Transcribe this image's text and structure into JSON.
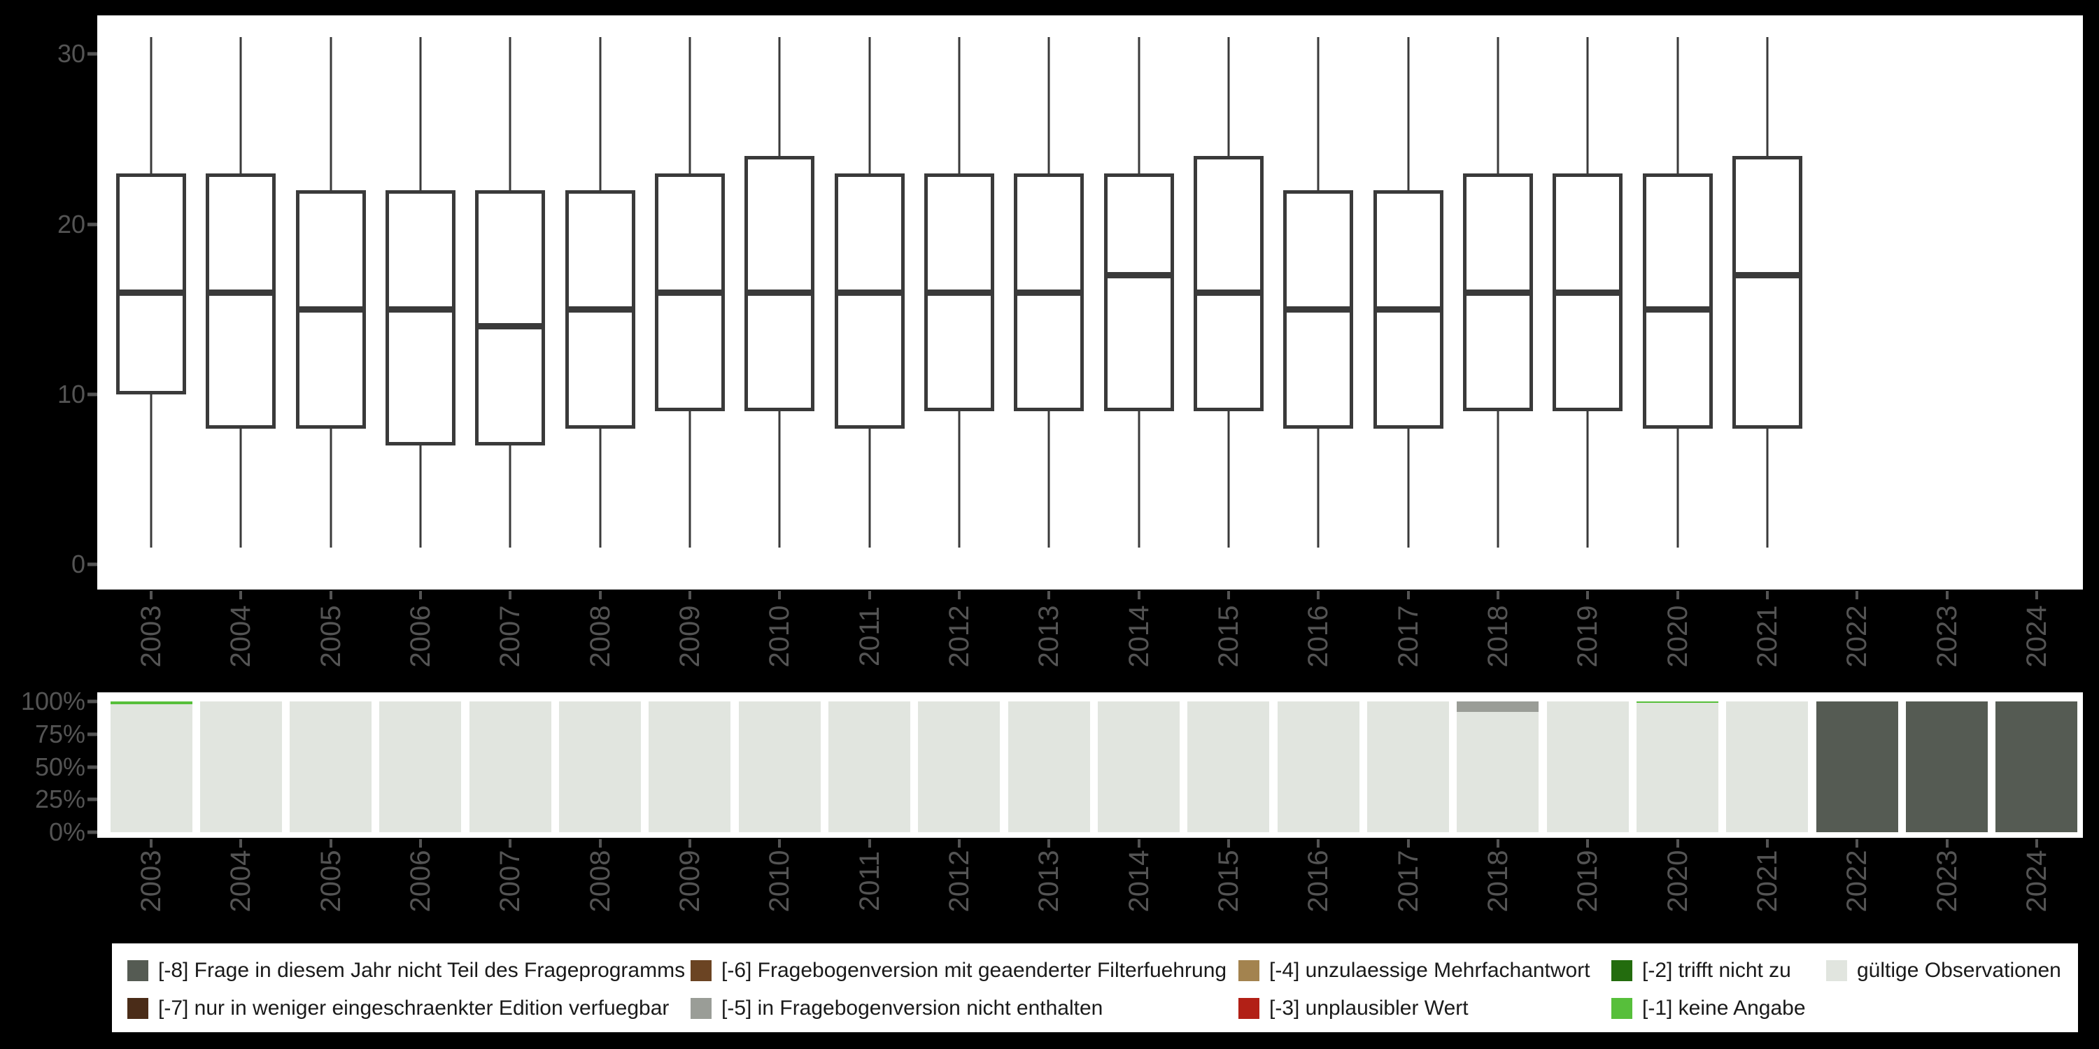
{
  "figure": {
    "background": "#000000",
    "panel_background": "#ffffff",
    "axis_text_color": "#545454",
    "box_line_color": "#3a3a3a",
    "legend_text_color": "#1a1a1a"
  },
  "palette": {
    "valid": "#e1e5df",
    "-1": "#57bf3b",
    "-2": "#236c0e",
    "-3": "#b22016",
    "-4": "#a3834f",
    "-5": "#9a9d97",
    "-6": "#6b4423",
    "-7": "#4a2c18",
    "-8": "#555b53"
  },
  "chart_data": [
    {
      "type": "boxplot",
      "title": "",
      "xlabel": "",
      "ylabel": "",
      "x_categories": [
        "2003",
        "2004",
        "2005",
        "2006",
        "2007",
        "2008",
        "2009",
        "2010",
        "2011",
        "2012",
        "2013",
        "2014",
        "2015",
        "2016",
        "2017",
        "2018",
        "2019",
        "2020",
        "2021",
        "2022",
        "2023",
        "2024"
      ],
      "ylim": [
        0,
        31
      ],
      "yticks": [
        0,
        10,
        20,
        30
      ],
      "grid": false,
      "boxes": [
        {
          "year": "2003",
          "whisker_low": 1,
          "q1": 10,
          "median": 16,
          "q3": 23,
          "whisker_high": 31
        },
        {
          "year": "2004",
          "whisker_low": 1,
          "q1": 8,
          "median": 16,
          "q3": 23,
          "whisker_high": 31
        },
        {
          "year": "2005",
          "whisker_low": 1,
          "q1": 8,
          "median": 15,
          "q3": 22,
          "whisker_high": 31
        },
        {
          "year": "2006",
          "whisker_low": 1,
          "q1": 7,
          "median": 15,
          "q3": 22,
          "whisker_high": 31
        },
        {
          "year": "2007",
          "whisker_low": 1,
          "q1": 7,
          "median": 14,
          "q3": 22,
          "whisker_high": 31
        },
        {
          "year": "2008",
          "whisker_low": 1,
          "q1": 8,
          "median": 15,
          "q3": 22,
          "whisker_high": 31
        },
        {
          "year": "2009",
          "whisker_low": 1,
          "q1": 9,
          "median": 16,
          "q3": 23,
          "whisker_high": 31
        },
        {
          "year": "2010",
          "whisker_low": 1,
          "q1": 9,
          "median": 16,
          "q3": 24,
          "whisker_high": 31
        },
        {
          "year": "2011",
          "whisker_low": 1,
          "q1": 8,
          "median": 16,
          "q3": 23,
          "whisker_high": 31
        },
        {
          "year": "2012",
          "whisker_low": 1,
          "q1": 9,
          "median": 16,
          "q3": 23,
          "whisker_high": 31
        },
        {
          "year": "2013",
          "whisker_low": 1,
          "q1": 9,
          "median": 16,
          "q3": 23,
          "whisker_high": 31
        },
        {
          "year": "2014",
          "whisker_low": 1,
          "q1": 9,
          "median": 17,
          "q3": 23,
          "whisker_high": 31
        },
        {
          "year": "2015",
          "whisker_low": 1,
          "q1": 9,
          "median": 16,
          "q3": 24,
          "whisker_high": 31
        },
        {
          "year": "2016",
          "whisker_low": 1,
          "q1": 8,
          "median": 15,
          "q3": 22,
          "whisker_high": 31
        },
        {
          "year": "2017",
          "whisker_low": 1,
          "q1": 8,
          "median": 15,
          "q3": 22,
          "whisker_high": 31
        },
        {
          "year": "2018",
          "whisker_low": 1,
          "q1": 9,
          "median": 16,
          "q3": 23,
          "whisker_high": 31
        },
        {
          "year": "2019",
          "whisker_low": 1,
          "q1": 9,
          "median": 16,
          "q3": 23,
          "whisker_high": 31
        },
        {
          "year": "2020",
          "whisker_low": 1,
          "q1": 8,
          "median": 15,
          "q3": 23,
          "whisker_high": 31
        },
        {
          "year": "2021",
          "whisker_low": 1,
          "q1": 8,
          "median": 17,
          "q3": 24,
          "whisker_high": 31
        }
      ],
      "empty_years": [
        "2022",
        "2023",
        "2024"
      ]
    },
    {
      "type": "bar",
      "stacked": true,
      "title": "",
      "x_categories": [
        "2003",
        "2004",
        "2005",
        "2006",
        "2007",
        "2008",
        "2009",
        "2010",
        "2011",
        "2012",
        "2013",
        "2014",
        "2015",
        "2016",
        "2017",
        "2018",
        "2019",
        "2020",
        "2021",
        "2022",
        "2023",
        "2024"
      ],
      "ylim": [
        0,
        100
      ],
      "ytick_values": [
        0,
        25,
        50,
        75,
        100
      ],
      "ytick_labels": [
        "0%",
        "25%",
        "50%",
        "75%",
        "100%"
      ],
      "grid": false,
      "bars": [
        {
          "year": "2003",
          "segments": [
            {
              "code": "valid",
              "pct": 98
            },
            {
              "code": "-1",
              "pct": 2
            }
          ]
        },
        {
          "year": "2004",
          "segments": [
            {
              "code": "valid",
              "pct": 100
            }
          ]
        },
        {
          "year": "2005",
          "segments": [
            {
              "code": "valid",
              "pct": 100
            }
          ]
        },
        {
          "year": "2006",
          "segments": [
            {
              "code": "valid",
              "pct": 100
            }
          ]
        },
        {
          "year": "2007",
          "segments": [
            {
              "code": "valid",
              "pct": 100
            }
          ]
        },
        {
          "year": "2008",
          "segments": [
            {
              "code": "valid",
              "pct": 100
            }
          ]
        },
        {
          "year": "2009",
          "segments": [
            {
              "code": "valid",
              "pct": 100
            }
          ]
        },
        {
          "year": "2010",
          "segments": [
            {
              "code": "valid",
              "pct": 100
            }
          ]
        },
        {
          "year": "2011",
          "segments": [
            {
              "code": "valid",
              "pct": 100
            }
          ]
        },
        {
          "year": "2012",
          "segments": [
            {
              "code": "valid",
              "pct": 100
            }
          ]
        },
        {
          "year": "2013",
          "segments": [
            {
              "code": "valid",
              "pct": 100
            }
          ]
        },
        {
          "year": "2014",
          "segments": [
            {
              "code": "valid",
              "pct": 100
            }
          ]
        },
        {
          "year": "2015",
          "segments": [
            {
              "code": "valid",
              "pct": 100
            }
          ]
        },
        {
          "year": "2016",
          "segments": [
            {
              "code": "valid",
              "pct": 100
            }
          ]
        },
        {
          "year": "2017",
          "segments": [
            {
              "code": "valid",
              "pct": 100
            }
          ]
        },
        {
          "year": "2018",
          "segments": [
            {
              "code": "valid",
              "pct": 92
            },
            {
              "code": "-5",
              "pct": 8
            }
          ]
        },
        {
          "year": "2019",
          "segments": [
            {
              "code": "valid",
              "pct": 100
            }
          ]
        },
        {
          "year": "2020",
          "segments": [
            {
              "code": "valid",
              "pct": 99
            },
            {
              "code": "-1",
              "pct": 1
            }
          ]
        },
        {
          "year": "2021",
          "segments": [
            {
              "code": "valid",
              "pct": 100
            }
          ]
        },
        {
          "year": "2022",
          "segments": [
            {
              "code": "-8",
              "pct": 100
            }
          ]
        },
        {
          "year": "2023",
          "segments": [
            {
              "code": "-8",
              "pct": 100
            }
          ]
        },
        {
          "year": "2024",
          "segments": [
            {
              "code": "-8",
              "pct": 100
            }
          ]
        }
      ]
    }
  ],
  "legend": {
    "items": [
      {
        "code": "-8",
        "label": "[-8] Frage in diesem Jahr nicht Teil des Frageprogramms",
        "col": 0,
        "row": 0
      },
      {
        "code": "-7",
        "label": "[-7] nur in weniger eingeschraenkter Edition verfuegbar",
        "col": 0,
        "row": 1
      },
      {
        "code": "-6",
        "label": "[-6] Fragebogenversion mit geaenderter Filterfuehrung",
        "col": 1,
        "row": 0
      },
      {
        "code": "-5",
        "label": "[-5] in Fragebogenversion nicht enthalten",
        "col": 1,
        "row": 1
      },
      {
        "code": "-4",
        "label": "[-4] unzulaessige Mehrfachantwort",
        "col": 2,
        "row": 0
      },
      {
        "code": "-3",
        "label": "[-3] unplausibler Wert",
        "col": 2,
        "row": 1
      },
      {
        "code": "-2",
        "label": "[-2] trifft nicht zu",
        "col": 3,
        "row": 0
      },
      {
        "code": "-1",
        "label": "[-1] keine Angabe",
        "col": 3,
        "row": 1
      },
      {
        "code": "valid",
        "label": "gültige Observationen",
        "col": 4,
        "row": 0
      }
    ]
  }
}
